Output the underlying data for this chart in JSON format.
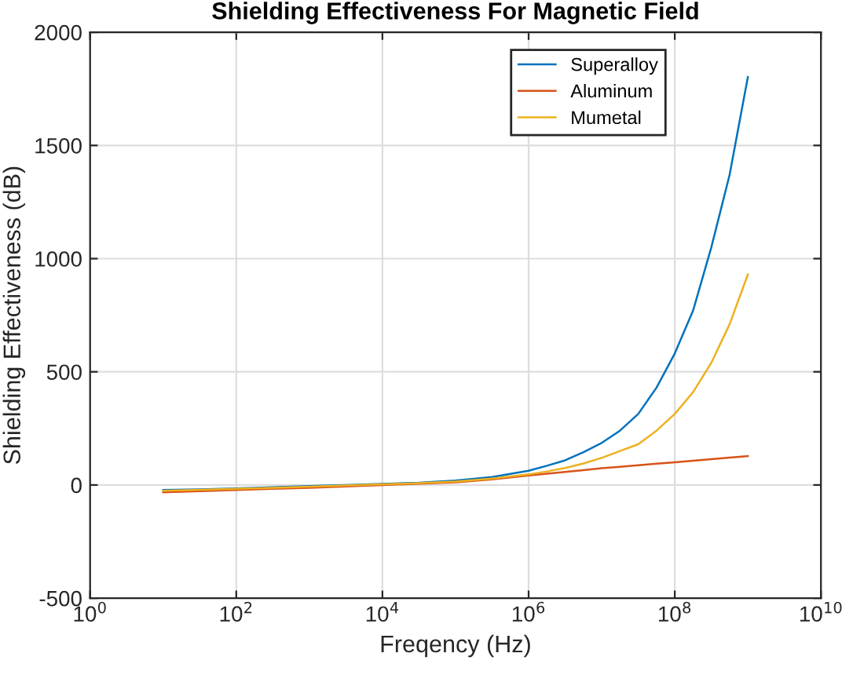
{
  "chart_data": {
    "type": "line",
    "title": "Shielding Effectiveness For Magnetic Field",
    "xlabel": "Freqency (Hz)",
    "ylabel": "Shielding Effectiveness (dB)",
    "log": "x",
    "xlim": [
      1,
      10000000000
    ],
    "ylim": [
      -500,
      2000
    ],
    "xticks": [
      {
        "value": 1,
        "label": "10$^{0}$"
      },
      {
        "value": 100,
        "label": "10$^{2}$"
      },
      {
        "value": 10000,
        "label": "10$^{4}$"
      },
      {
        "value": 1000000,
        "label": "10$^{6}$"
      },
      {
        "value": 100000000,
        "label": "10$^{8}$"
      },
      {
        "value": 10000000000,
        "label": "10$^{10}$"
      }
    ],
    "yticks": [
      -500,
      0,
      500,
      1000,
      1500,
      2000
    ],
    "grid": true,
    "legend": "top right",
    "x": [
      10,
      31.6,
      100,
      316,
      1000,
      3162,
      10000,
      31623,
      100000,
      316228,
      1000000,
      1778279,
      3162278,
      5623413,
      10000000,
      17782794,
      31622777,
      56234133,
      100000000,
      177827941,
      316227766,
      562341325,
      1000000000
    ],
    "series": [
      {
        "name": "Superalloy",
        "color": "#0072bd",
        "values": [
          -22,
          -19,
          -15,
          -10,
          -5,
          0,
          5,
          10,
          20,
          35,
          63,
          85,
          109,
          145,
          186,
          240,
          314,
          430,
          581,
          770,
          1050,
          1370,
          1802
        ]
      },
      {
        "name": "Aluminum",
        "color": "#d95319",
        "values": [
          -32,
          -27,
          -22,
          -17,
          -12,
          -6,
          0,
          6,
          12,
          25,
          42,
          50,
          58,
          66,
          74,
          80,
          87,
          94,
          100,
          107,
          114,
          121,
          128
        ]
      },
      {
        "name": "Mumetal",
        "color": "#edb120",
        "values": [
          -25,
          -21,
          -17,
          -12,
          -7,
          -2,
          3,
          8,
          15,
          28,
          47,
          60,
          75,
          95,
          120,
          150,
          180,
          240,
          314,
          410,
          540,
          710,
          930
        ]
      }
    ]
  }
}
